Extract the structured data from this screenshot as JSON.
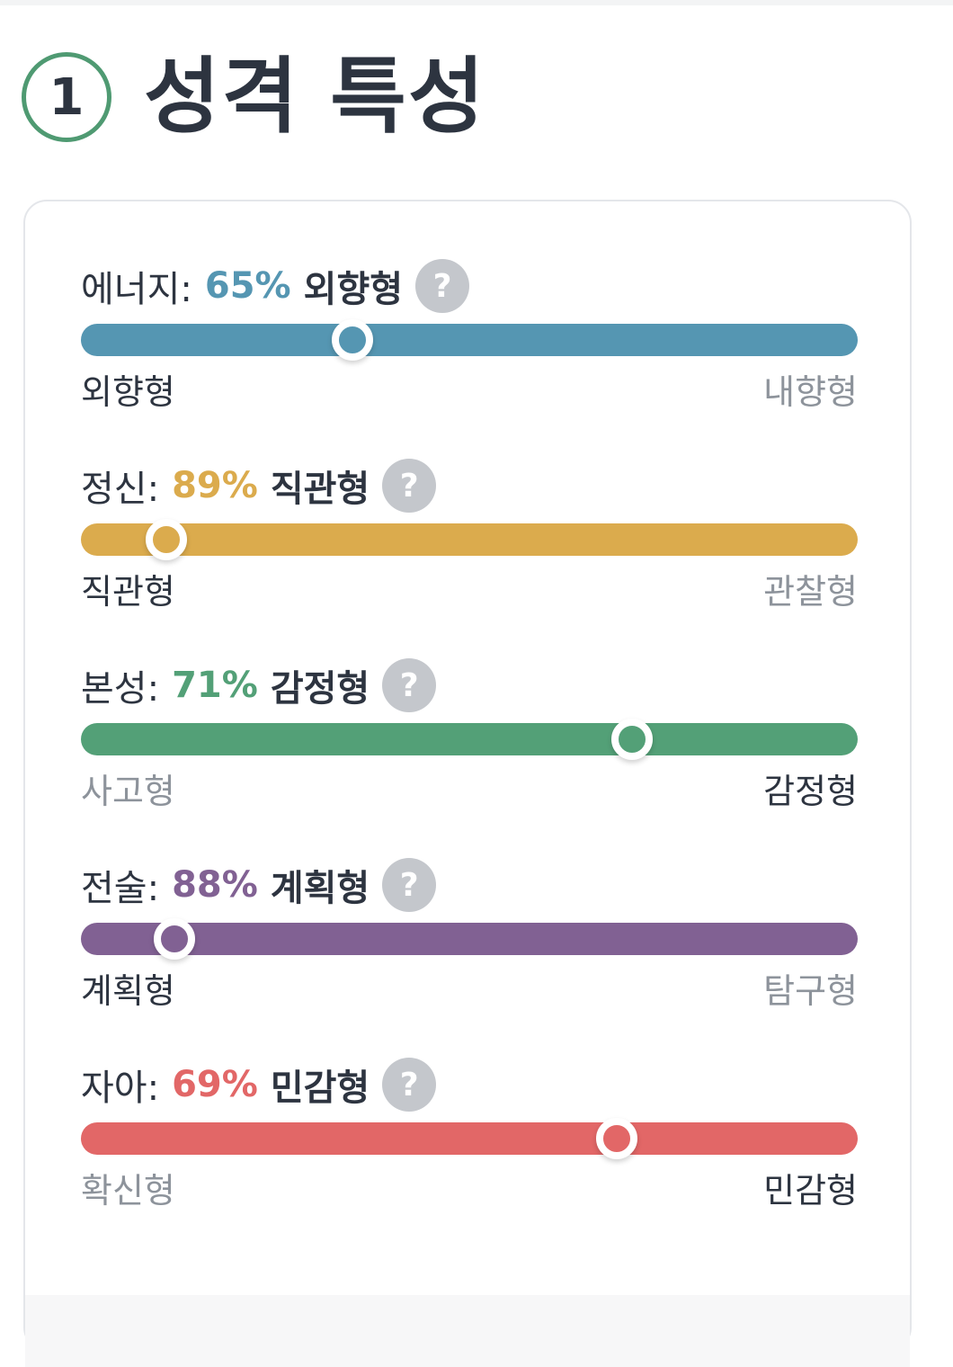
{
  "header": {
    "step_number": "1",
    "title": "성격 특성"
  },
  "help_icon_glyph": "?",
  "traits": [
    {
      "name": "에너지:",
      "percent": "65%",
      "type": "외향형",
      "color": "#5596b2",
      "left_label": "외향형",
      "right_label": "내향형",
      "dominant_side": "left",
      "dominant_percent": 65
    },
    {
      "name": "정신:",
      "percent": "89%",
      "type": "직관형",
      "color": "#dbab4d",
      "left_label": "직관형",
      "right_label": "관찰형",
      "dominant_side": "left",
      "dominant_percent": 89
    },
    {
      "name": "본성:",
      "percent": "71%",
      "type": "감정형",
      "color": "#53a077",
      "left_label": "사고형",
      "right_label": "감정형",
      "dominant_side": "right",
      "dominant_percent": 71
    },
    {
      "name": "전술:",
      "percent": "88%",
      "type": "계획형",
      "color": "#816193",
      "left_label": "계획형",
      "right_label": "탐구형",
      "dominant_side": "left",
      "dominant_percent": 88
    },
    {
      "name": "자아:",
      "percent": "69%",
      "type": "민감형",
      "color": "#e26767",
      "left_label": "확신형",
      "right_label": "민감형",
      "dominant_side": "right",
      "dominant_percent": 69
    }
  ]
}
